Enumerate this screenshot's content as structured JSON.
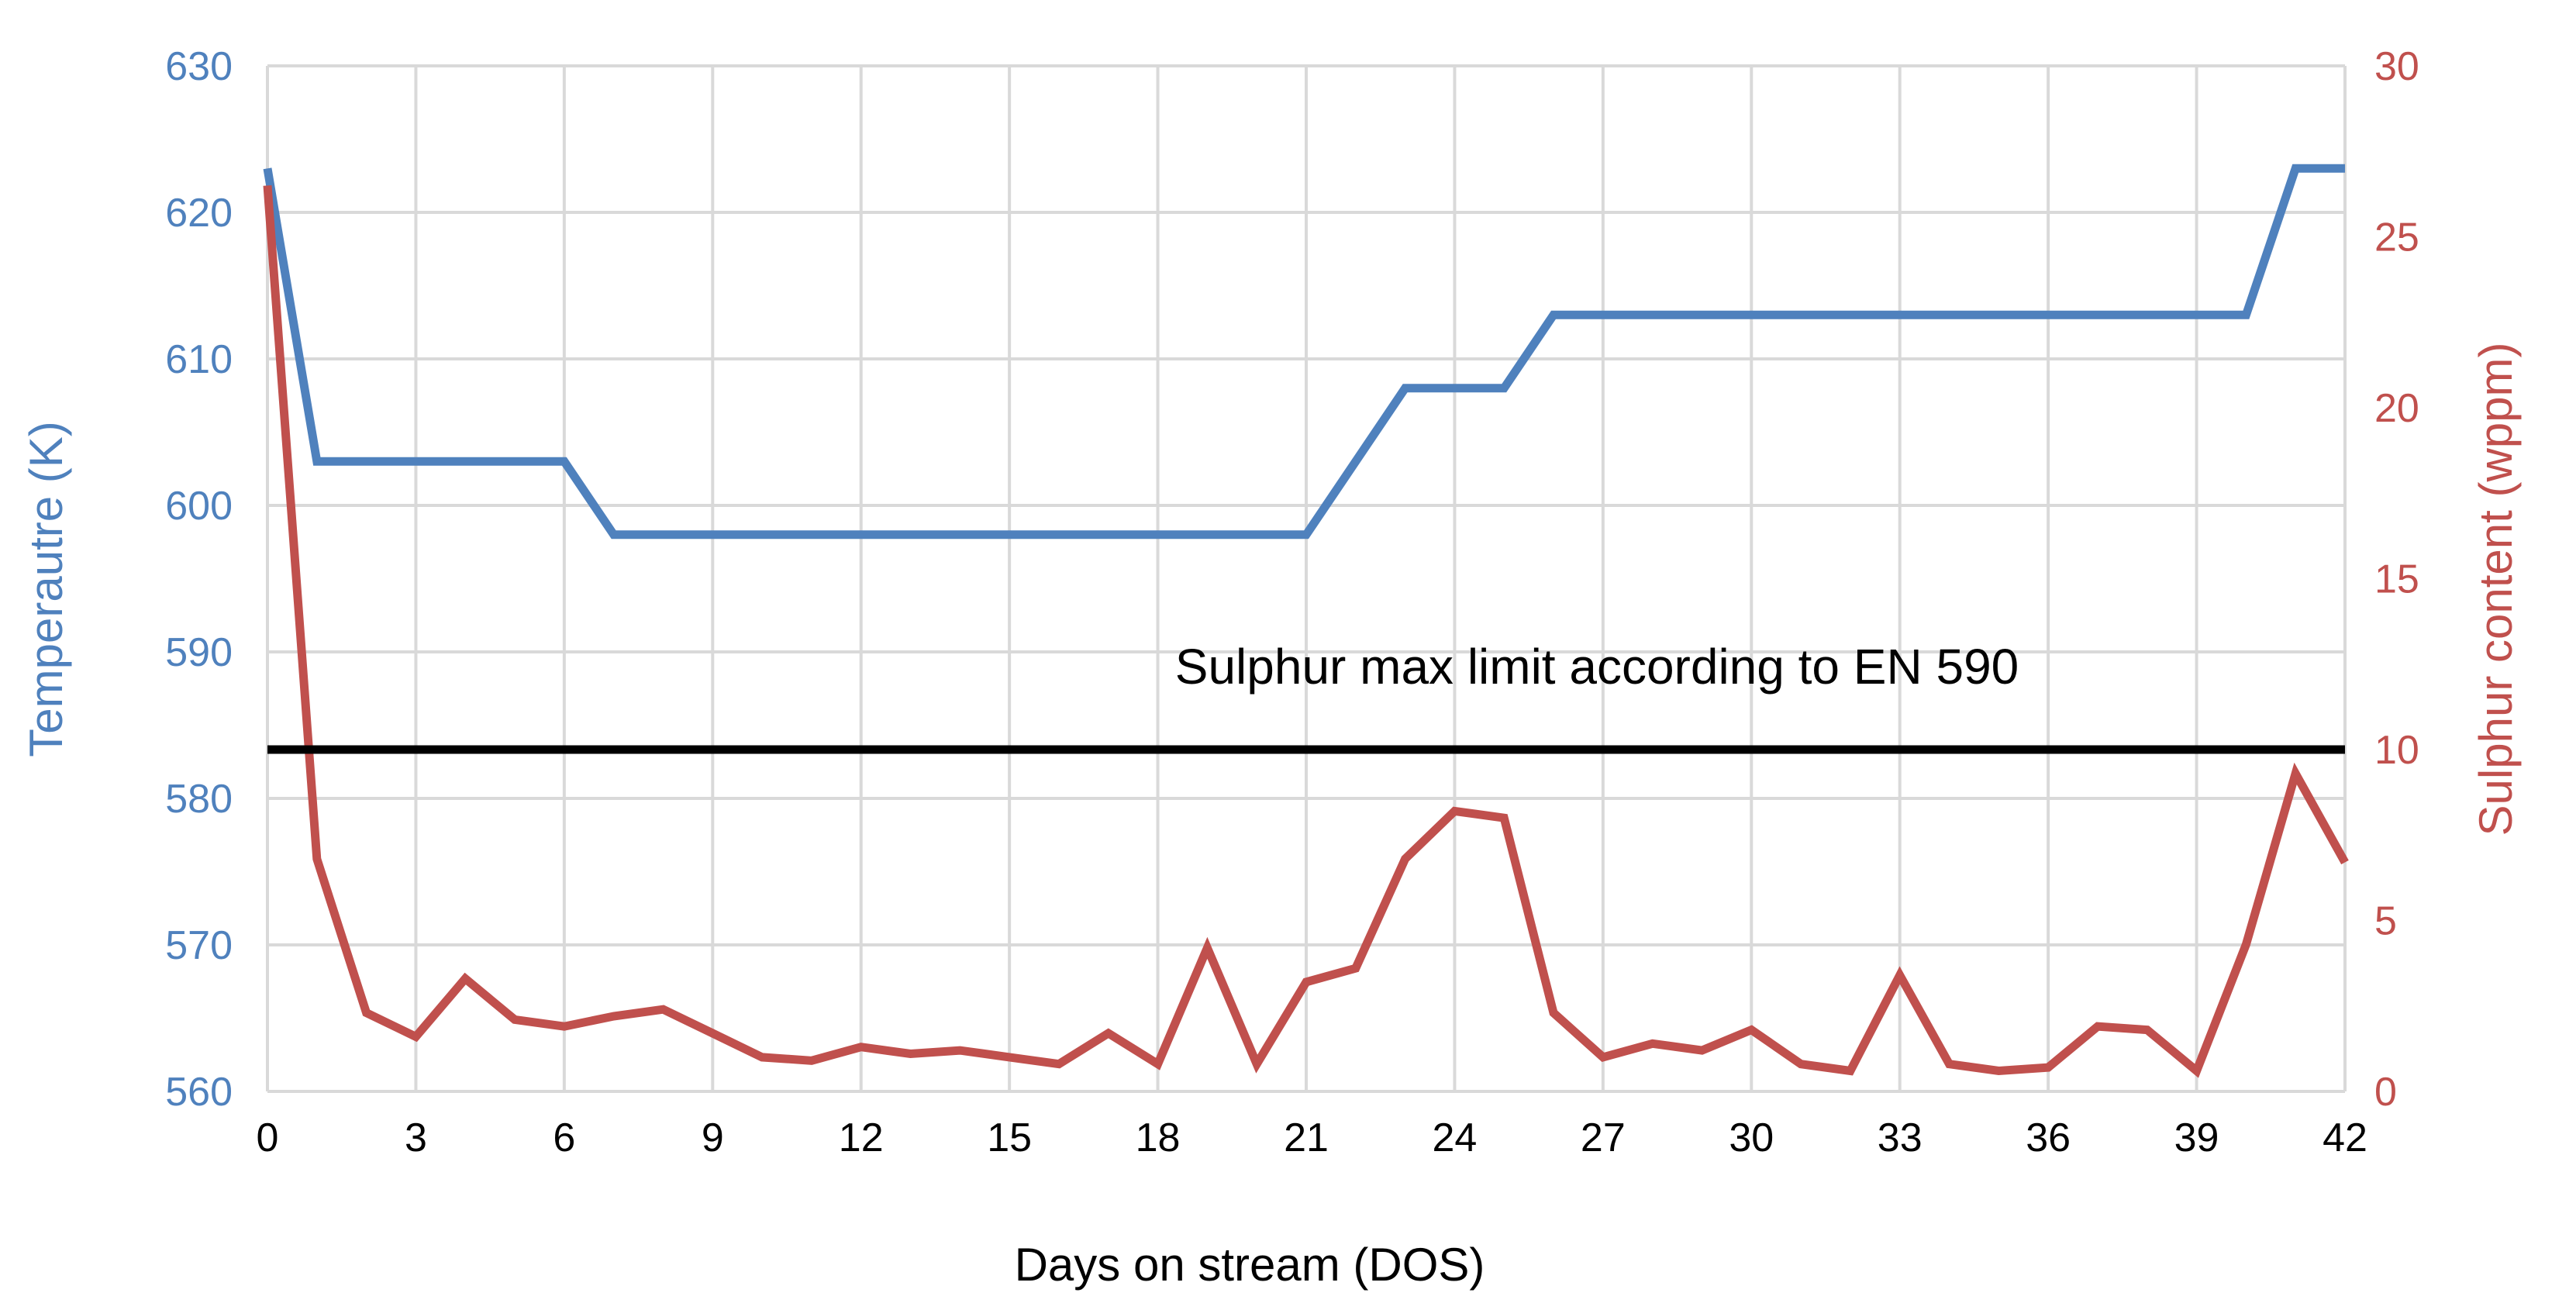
{
  "chart_data": {
    "type": "line",
    "x": [
      0,
      1,
      2,
      3,
      4,
      5,
      6,
      7,
      8,
      9,
      10,
      11,
      12,
      13,
      14,
      15,
      16,
      17,
      18,
      19,
      20,
      21,
      22,
      23,
      24,
      25,
      26,
      27,
      28,
      29,
      30,
      31,
      32,
      33,
      34,
      35,
      36,
      37,
      38,
      39,
      40,
      41,
      42
    ],
    "xlabel": "Days on stream (DOS)",
    "xlim": [
      0,
      42
    ],
    "xticks": [
      0,
      3,
      6,
      9,
      12,
      15,
      18,
      21,
      24,
      27,
      30,
      33,
      36,
      39,
      42
    ],
    "ylabel_left": "Temperautre (K)",
    "ylim_left": [
      560,
      630
    ],
    "yticks_left": [
      560,
      570,
      580,
      590,
      600,
      610,
      620,
      630
    ],
    "ylabel_right": "Sulphur content (wppm)",
    "ylim_right": [
      0,
      30
    ],
    "yticks_right": [
      0,
      5,
      10,
      15,
      20,
      25,
      30
    ],
    "grid": true,
    "series": [
      {
        "axis": "left",
        "color": "#4f81bd",
        "x": [
          0,
          1,
          6,
          7,
          21,
          23,
          25,
          26,
          40,
          41,
          42
        ],
        "values": [
          623,
          603,
          603,
          598,
          598,
          608,
          608,
          613,
          613,
          623,
          623
        ]
      },
      {
        "axis": "right",
        "color": "#c0504d",
        "x": [
          0,
          1,
          2,
          3,
          4,
          5,
          6,
          7,
          8,
          9,
          10,
          11,
          12,
          13,
          14,
          15,
          16,
          17,
          18,
          19,
          20,
          21,
          22,
          23,
          24,
          25,
          26,
          27,
          28,
          29,
          30,
          31,
          32,
          33,
          34,
          35,
          36,
          37,
          38,
          39,
          40,
          41,
          42
        ],
        "values": [
          26.5,
          6.8,
          2.3,
          1.6,
          3.3,
          2.1,
          1.9,
          2.2,
          2.4,
          1.7,
          1.0,
          0.9,
          1.3,
          1.1,
          1.2,
          1.0,
          0.8,
          1.7,
          0.8,
          4.2,
          0.8,
          3.2,
          3.6,
          6.8,
          8.2,
          8.0,
          2.3,
          1.0,
          1.4,
          1.2,
          1.8,
          0.8,
          0.6,
          3.4,
          0.8,
          0.6,
          0.7,
          1.9,
          1.8,
          0.6,
          4.3,
          9.3,
          6.7
        ]
      }
    ],
    "reference_line": {
      "axis": "right",
      "value": 10,
      "color": "#000000",
      "label": "Sulphur max limit according to EN 590"
    }
  }
}
